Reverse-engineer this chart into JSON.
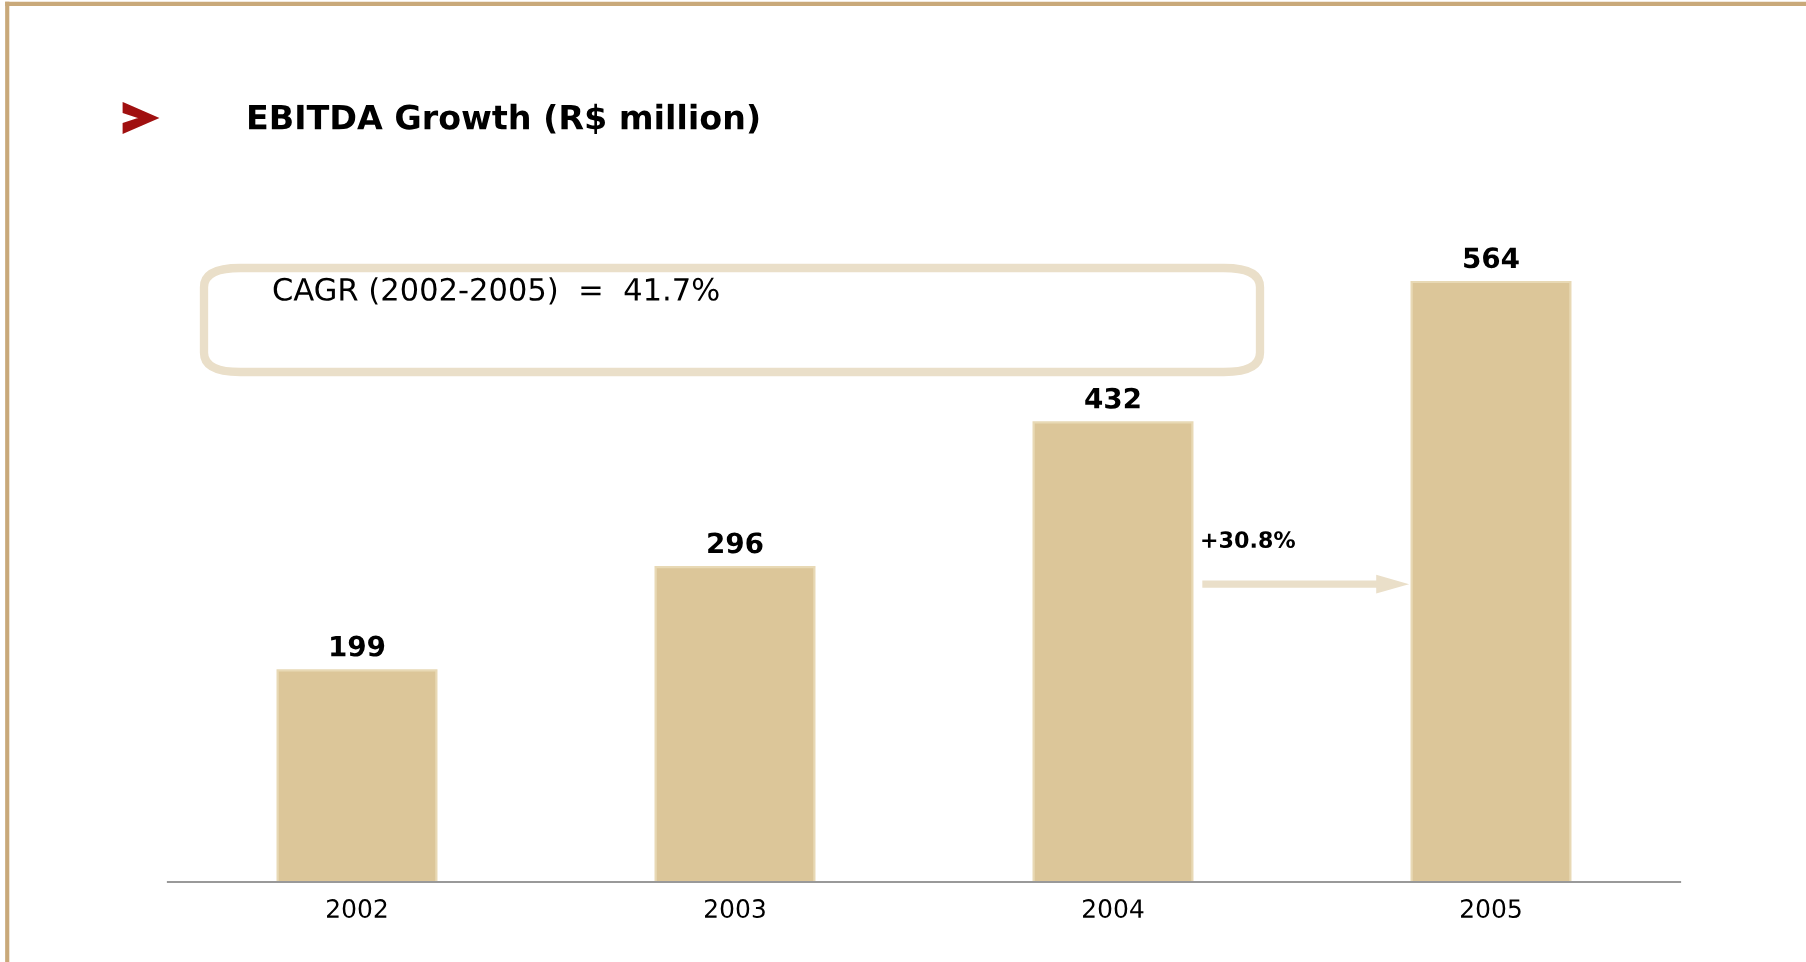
{
  "chart_data": {
    "type": "bar",
    "title": "EBITDA Growth (R$ million)",
    "categories": [
      "2002",
      "2003",
      "2004",
      "2005"
    ],
    "values": [
      199,
      296,
      432,
      564
    ],
    "color": "#dcc699",
    "data_labels": true,
    "grid": false,
    "legend": false,
    "tick_labels": "x",
    "annotations": [
      "CAGR (2002-2005)  =  41.7%",
      "+30.8%"
    ]
  }
}
